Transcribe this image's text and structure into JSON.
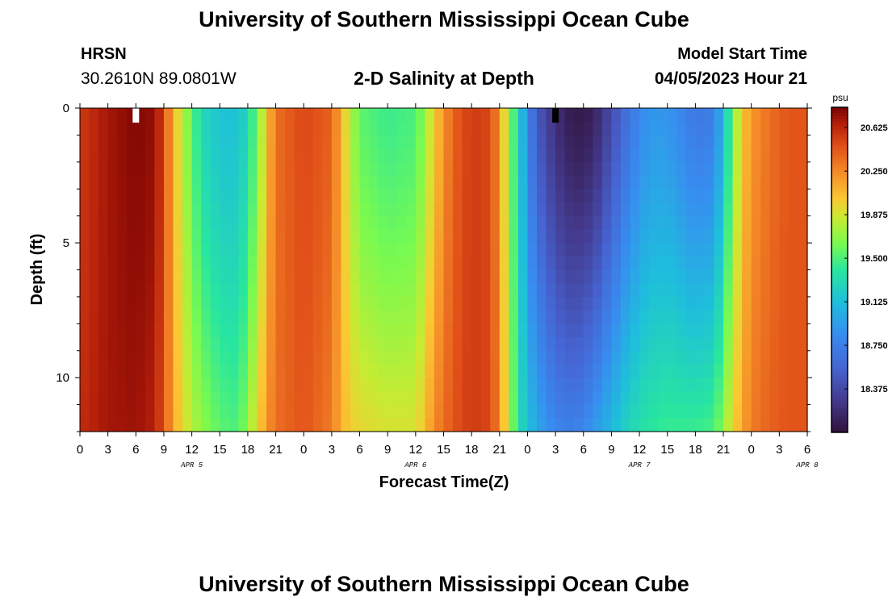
{
  "header": {
    "title": "University of Southern Mississippi Ocean Cube",
    "station": "HRSN",
    "coords": "30.2610N  89.0801W",
    "chart_title": "2-D Salinity at Depth",
    "model_label": "Model Start Time",
    "model_time": "04/05/2023 Hour 21"
  },
  "footer": {
    "title": "University of Southern Mississippi Ocean Cube"
  },
  "chart_data": {
    "type": "heatmap",
    "title": "2-D Salinity at Depth",
    "xlabel": "Forecast Time(Z)",
    "ylabel": "Depth (ft)",
    "x_tick_labels": [
      "0",
      "3",
      "6",
      "9",
      "12",
      "15",
      "18",
      "21",
      "0",
      "3",
      "6",
      "9",
      "12",
      "15",
      "18",
      "21",
      "0",
      "3",
      "6",
      "9",
      "12",
      "15",
      "18",
      "21",
      "0",
      "3",
      "6"
    ],
    "day_labels": [
      {
        "label": "APR 5",
        "hour": 12
      },
      {
        "label": "APR 6",
        "hour": 36
      },
      {
        "label": "APR 7",
        "hour": 60
      },
      {
        "label": "APR 8",
        "hour": 78
      }
    ],
    "x_range_hours": [
      0,
      78
    ],
    "y_ticks": [
      0,
      5,
      10
    ],
    "y_range_ft": [
      0,
      12
    ],
    "colorbar": {
      "unit": "psu",
      "min": 18.0,
      "max": 20.8,
      "tick_values": [
        20.625,
        20.25,
        19.875,
        19.5,
        19.125,
        18.75,
        18.375
      ],
      "tick_labels": [
        "20.625",
        "20.250",
        "19.875",
        "19.500",
        "19.125",
        "18.750",
        "18.375"
      ]
    },
    "surface_salinity_by_hour": [
      [
        0,
        20.55
      ],
      [
        3,
        20.7
      ],
      [
        6,
        20.78
      ],
      [
        8,
        20.74
      ],
      [
        9,
        20.5
      ],
      [
        10,
        20.1
      ],
      [
        11,
        19.8
      ],
      [
        12,
        19.55
      ],
      [
        13,
        19.3
      ],
      [
        15,
        19.15
      ],
      [
        17,
        19.15
      ],
      [
        18,
        19.3
      ],
      [
        19,
        19.6
      ],
      [
        20,
        20.0
      ],
      [
        21,
        20.35
      ],
      [
        24,
        20.5
      ],
      [
        27,
        20.4
      ],
      [
        28,
        20.1
      ],
      [
        29,
        19.8
      ],
      [
        30,
        19.55
      ],
      [
        33,
        19.45
      ],
      [
        36,
        19.5
      ],
      [
        37,
        19.7
      ],
      [
        38,
        20.0
      ],
      [
        40,
        20.4
      ],
      [
        42,
        20.55
      ],
      [
        44,
        20.5
      ],
      [
        45,
        20.2
      ],
      [
        46,
        19.7
      ],
      [
        47,
        19.3
      ],
      [
        48,
        18.8
      ],
      [
        49,
        18.5
      ],
      [
        51,
        18.2
      ],
      [
        53,
        18.05
      ],
      [
        55,
        18.1
      ],
      [
        57,
        18.4
      ],
      [
        59,
        18.7
      ],
      [
        61,
        18.9
      ],
      [
        63,
        18.9
      ],
      [
        66,
        18.7
      ],
      [
        68,
        18.75
      ],
      [
        69,
        19.1
      ],
      [
        70,
        19.6
      ],
      [
        71,
        20.0
      ],
      [
        72,
        20.2
      ],
      [
        74,
        20.35
      ],
      [
        76,
        20.45
      ],
      [
        78,
        20.45
      ]
    ],
    "bottom_salinity_by_hour": [
      [
        0,
        20.6
      ],
      [
        3,
        20.7
      ],
      [
        6,
        20.72
      ],
      [
        8,
        20.65
      ],
      [
        9,
        20.45
      ],
      [
        10,
        20.15
      ],
      [
        11,
        19.95
      ],
      [
        12,
        19.8
      ],
      [
        13,
        19.7
      ],
      [
        15,
        19.55
      ],
      [
        17,
        19.5
      ],
      [
        18,
        19.7
      ],
      [
        19,
        19.95
      ],
      [
        20,
        20.2
      ],
      [
        21,
        20.35
      ],
      [
        24,
        20.45
      ],
      [
        27,
        20.3
      ],
      [
        28,
        20.1
      ],
      [
        29,
        20.0
      ],
      [
        30,
        19.95
      ],
      [
        33,
        19.9
      ],
      [
        36,
        19.9
      ],
      [
        37,
        20.05
      ],
      [
        38,
        20.25
      ],
      [
        40,
        20.45
      ],
      [
        42,
        20.55
      ],
      [
        44,
        20.5
      ],
      [
        45,
        20.25
      ],
      [
        46,
        19.8
      ],
      [
        47,
        19.35
      ],
      [
        48,
        19.15
      ],
      [
        49,
        19.0
      ],
      [
        51,
        18.8
      ],
      [
        53,
        18.75
      ],
      [
        55,
        18.9
      ],
      [
        57,
        19.1
      ],
      [
        59,
        19.3
      ],
      [
        61,
        19.4
      ],
      [
        63,
        19.45
      ],
      [
        66,
        19.45
      ],
      [
        68,
        19.5
      ],
      [
        69,
        19.7
      ],
      [
        70,
        19.95
      ],
      [
        71,
        20.15
      ],
      [
        72,
        20.3
      ],
      [
        74,
        20.4
      ],
      [
        76,
        20.45
      ],
      [
        78,
        20.45
      ]
    ],
    "markers": [
      {
        "hour": 6,
        "depth_ft": 0,
        "color": "#ffffff"
      },
      {
        "hour": 51,
        "depth_ft": 0,
        "color": "#000000"
      }
    ]
  }
}
